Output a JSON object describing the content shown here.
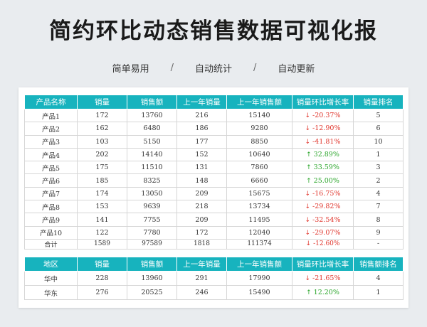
{
  "title": "简约环比动态销售数据可视化报",
  "tags": [
    "简单易用",
    "自动统计",
    "自动更新"
  ],
  "separator": "/",
  "table1": {
    "headers": [
      "产品名称",
      "销量",
      "销售额",
      "上一年销量",
      "上一年销售额",
      "销量环比增长率",
      "销量排名"
    ],
    "rows": [
      [
        "产品1",
        "172",
        "13760",
        "216",
        "15140",
        "-20.37%",
        "5"
      ],
      [
        "产品2",
        "162",
        "6480",
        "186",
        "9280",
        "-12.90%",
        "6"
      ],
      [
        "产品3",
        "103",
        "5150",
        "177",
        "8850",
        "-41.81%",
        "10"
      ],
      [
        "产品4",
        "202",
        "14140",
        "152",
        "10640",
        "32.89%",
        "1"
      ],
      [
        "产品5",
        "175",
        "11510",
        "131",
        "7860",
        "33.59%",
        "3"
      ],
      [
        "产品6",
        "185",
        "8325",
        "148",
        "6660",
        "25.00%",
        "2"
      ],
      [
        "产品7",
        "174",
        "13050",
        "209",
        "15675",
        "-16.75%",
        "4"
      ],
      [
        "产品8",
        "153",
        "9639",
        "218",
        "13734",
        "-29.82%",
        "7"
      ],
      [
        "产品9",
        "141",
        "7755",
        "209",
        "11495",
        "-32.54%",
        "8"
      ],
      [
        "产品10",
        "122",
        "7780",
        "172",
        "12040",
        "-29.07%",
        "9"
      ]
    ],
    "total": [
      "合计",
      "1589",
      "97589",
      "1818",
      "111374",
      "-12.60%",
      "-"
    ]
  },
  "table2": {
    "headers": [
      "地区",
      "销量",
      "销售额",
      "上一年销量",
      "上一年销售额",
      "销量环比增长率",
      "销售额排名"
    ],
    "rows": [
      [
        "华中",
        "228",
        "13960",
        "291",
        "17990",
        "-21.65%",
        "4"
      ],
      [
        "华东",
        "276",
        "20525",
        "246",
        "15490",
        "12.20%",
        "1"
      ]
    ]
  },
  "colors": {
    "header_bg": "#17b3be",
    "down": "#e0342b",
    "up": "#2aa52a"
  },
  "icons": {
    "down": "arrow-down-icon",
    "up": "arrow-up-icon"
  }
}
